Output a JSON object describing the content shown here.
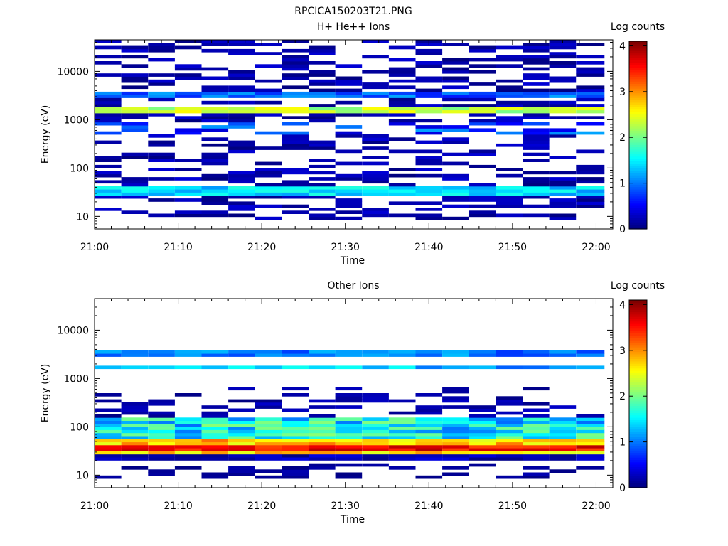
{
  "figure_title": "RPCICA150203T21.PNG",
  "chart_data": [
    {
      "type": "heatmap",
      "title": "H+ He++ Ions",
      "xlabel": "Time",
      "ylabel": "Energy (eV)",
      "x_ticks": [
        "21:00",
        "21:10",
        "21:20",
        "21:30",
        "21:40",
        "21:50",
        "22:00"
      ],
      "x_range": [
        "21:00",
        "22:02"
      ],
      "y_scale": "log",
      "y_ticks": [
        "10",
        "100",
        "1000",
        "10000"
      ],
      "y_range": [
        5.5,
        45000
      ],
      "colorbar": {
        "label": "Log counts",
        "ticks": [
          "0",
          "1",
          "2",
          "3",
          "4"
        ],
        "range": [
          0,
          4.1
        ],
        "colormap": "jet"
      },
      "time_bins_min": [
        0,
        3.2,
        6.4,
        9.6,
        12.8,
        16.0,
        19.2,
        22.4,
        25.6,
        28.8,
        32.0,
        35.2,
        38.4,
        41.6,
        44.8,
        48.0,
        51.2,
        54.4,
        57.6,
        61.0
      ],
      "features": [
        {
          "energy_eV": [
            28,
            40
          ],
          "level": 1.4,
          "note": "low-energy band"
        },
        {
          "energy_eV": [
            1400,
            1800
          ],
          "level": 2.4,
          "note": "mid-energy band"
        },
        {
          "energy_eV": [
            2800,
            3600
          ],
          "level": 0.9,
          "note": "weak band"
        }
      ]
    },
    {
      "type": "heatmap",
      "title": "Other Ions",
      "xlabel": "Time",
      "ylabel": "Energy (eV)",
      "x_ticks": [
        "21:00",
        "21:10",
        "21:20",
        "21:30",
        "21:40",
        "21:50",
        "22:00"
      ],
      "x_range": [
        "21:00",
        "22:02"
      ],
      "y_scale": "log",
      "y_ticks": [
        "10",
        "100",
        "1000",
        "10000"
      ],
      "y_range": [
        5.5,
        45000
      ],
      "colorbar": {
        "label": "Log counts",
        "ticks": [
          "0",
          "1",
          "2",
          "3",
          "4"
        ],
        "range": [
          0,
          4.1
        ],
        "colormap": "jet"
      },
      "time_bins_min": [
        0,
        3.2,
        6.4,
        9.6,
        12.8,
        16.0,
        19.2,
        22.4,
        25.6,
        28.8,
        32.0,
        35.2,
        38.4,
        41.6,
        44.8,
        48.0,
        51.2,
        54.4,
        57.6,
        61.0
      ],
      "features": [
        {
          "energy_eV": [
            30,
            40
          ],
          "level": 3.7,
          "note": "intense low-energy band"
        },
        {
          "energy_eV": [
            40,
            150
          ],
          "level": 1.6,
          "note": "broad gradient"
        },
        {
          "energy_eV": [
            1500,
            1900
          ],
          "level": 1.3,
          "note": "band"
        },
        {
          "energy_eV": [
            3000,
            3600
          ],
          "level": 1.0,
          "note": "band"
        }
      ]
    }
  ]
}
